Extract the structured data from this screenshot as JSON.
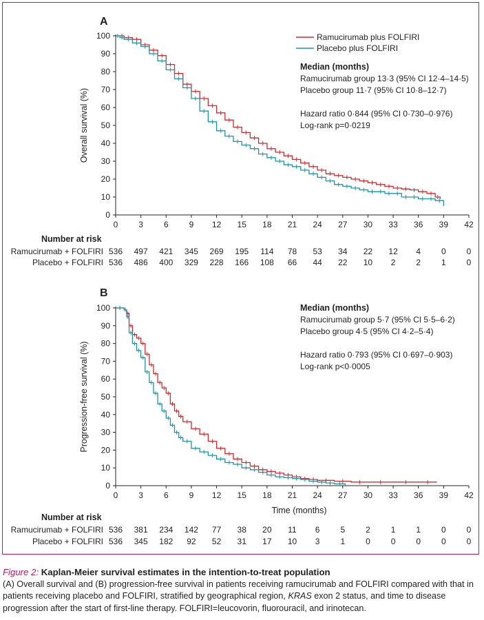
{
  "chart_data": [
    {
      "type": "line",
      "panel_label": "A",
      "ylabel": "Overall survival (%)",
      "xlabel": "",
      "x_ticks": [
        0,
        3,
        6,
        9,
        12,
        15,
        18,
        21,
        24,
        27,
        30,
        33,
        36,
        39,
        42
      ],
      "y_ticks": [
        0,
        10,
        20,
        30,
        40,
        50,
        60,
        70,
        80,
        90,
        100
      ],
      "xlim": [
        0,
        42
      ],
      "ylim": [
        0,
        100
      ],
      "legend": [
        "Ramucirumab plus FOLFIRI",
        "Placebo plus FOLFIRI"
      ],
      "legend_position": "top-right",
      "annotation_title": "Median (months)",
      "annotations": [
        "Ramucirumab group 13·3 (95% CI 12·4–14·5)",
        "Placebo group 11·7 (95% CI 10·8–12·7)",
        "",
        "Hazard ratio 0·844 (95% CI 0·730–0·976)",
        "Log-rank p=0·0219"
      ],
      "series": [
        {
          "name": "Ramucirumab plus FOLFIRI",
          "color": "#d7272b",
          "x": [
            0,
            0.5,
            1,
            2,
            3,
            4,
            5,
            6,
            7,
            8,
            9,
            10,
            11,
            12,
            13,
            14,
            15,
            16,
            17,
            18,
            19,
            20,
            21,
            22,
            23,
            24,
            25,
            26,
            27,
            28,
            29,
            30,
            31,
            32,
            33,
            34,
            35,
            36,
            37,
            38,
            38.6
          ],
          "y": [
            100,
            100,
            99,
            98,
            95,
            92,
            89,
            84,
            79,
            73,
            69,
            65,
            61,
            57,
            53,
            49,
            46,
            43,
            40,
            37,
            35,
            33,
            31,
            29,
            27,
            25,
            23,
            22,
            21,
            20,
            19,
            18,
            17,
            16,
            15,
            14.5,
            14,
            13,
            12,
            10,
            9
          ]
        },
        {
          "name": "Placebo plus FOLFIRI",
          "color": "#1795a8",
          "x": [
            0,
            0.5,
            1,
            2,
            3,
            4,
            5,
            6,
            7,
            8,
            9,
            10,
            11,
            12,
            13,
            14,
            15,
            16,
            17,
            18,
            19,
            20,
            21,
            22,
            23,
            24,
            25,
            26,
            27,
            28,
            29,
            30,
            31,
            32,
            33,
            34,
            35,
            36,
            37,
            38,
            39
          ],
          "y": [
            100,
            99,
            98,
            96,
            94,
            90,
            86,
            81,
            76,
            71,
            65,
            58,
            52,
            47,
            44,
            41,
            39,
            37,
            34,
            32,
            30,
            28,
            27,
            25,
            23,
            21,
            19,
            17,
            16,
            15,
            14,
            13,
            13,
            12,
            12,
            10,
            10,
            9,
            9,
            8,
            5
          ]
        }
      ],
      "risk_table": {
        "header": "Number at risk",
        "rows": [
          {
            "label": "Ramucirumab + FOLFIRI",
            "values": [
              536,
              497,
              421,
              345,
              269,
              195,
              114,
              78,
              53,
              34,
              22,
              12,
              4,
              0,
              0
            ]
          },
          {
            "label": "Placebo + FOLFIRI",
            "values": [
              536,
              486,
              400,
              329,
              228,
              166,
              108,
              66,
              44,
              22,
              10,
              2,
              2,
              1,
              0
            ]
          }
        ]
      }
    },
    {
      "type": "line",
      "panel_label": "B",
      "ylabel": "Progression-free survival (%)",
      "xlabel": "Time (months)",
      "x_ticks": [
        0,
        3,
        6,
        9,
        12,
        15,
        18,
        21,
        24,
        27,
        30,
        33,
        36,
        39,
        42
      ],
      "y_ticks": [
        0,
        10,
        20,
        30,
        40,
        50,
        60,
        70,
        80,
        90,
        100
      ],
      "xlim": [
        0,
        42
      ],
      "ylim": [
        0,
        100
      ],
      "annotation_title": "Median (months)",
      "annotations": [
        "Ramucirumab group 5·7 (95% CI 5·5–6·2)",
        "Placebo group 4·5 (95% CI 4·2–5·4)",
        "",
        "Hazard ratio 0·793 (95% CI 0·697–0·903)",
        "Log-rank p<0·0005"
      ],
      "series": [
        {
          "name": "Ramucirumab plus FOLFIRI",
          "color": "#d7272b",
          "x": [
            0,
            1,
            1.3,
            1.6,
            2,
            2.5,
            3,
            3.5,
            4,
            4.5,
            5,
            5.5,
            6,
            6.5,
            7,
            7.5,
            8,
            9,
            10,
            11,
            12,
            13,
            14,
            15,
            16,
            17,
            18,
            19,
            20,
            21,
            22,
            23,
            24,
            26,
            28,
            30,
            33,
            36,
            38.2
          ],
          "y": [
            100,
            99,
            97,
            90,
            85,
            83,
            80,
            74,
            68,
            63,
            58,
            55,
            52,
            46,
            42,
            39,
            36,
            32,
            29,
            25,
            21,
            18,
            15,
            13,
            11,
            9,
            8,
            7,
            6,
            5,
            4,
            3.5,
            3,
            2.5,
            2,
            2,
            2,
            2,
            2
          ]
        },
        {
          "name": "Placebo plus FOLFIRI",
          "color": "#1795a8",
          "x": [
            0,
            1,
            1.3,
            1.6,
            2,
            2.5,
            3,
            3.5,
            4,
            4.5,
            5,
            5.5,
            6,
            6.5,
            7,
            7.5,
            8,
            9,
            10,
            11,
            12,
            13,
            14,
            15,
            16,
            17,
            18,
            19,
            20,
            21,
            22,
            23,
            24,
            25,
            26,
            27.3
          ],
          "y": [
            100,
            99,
            95,
            86,
            80,
            76,
            72,
            64,
            58,
            52,
            46,
            42,
            38,
            34,
            30,
            27,
            25,
            21,
            19,
            17,
            15,
            13,
            12,
            10,
            9,
            7.5,
            6,
            5,
            4.5,
            4,
            3.5,
            2.5,
            2,
            1.5,
            1,
            0
          ]
        }
      ],
      "risk_table": {
        "header": "Number at risk",
        "rows": [
          {
            "label": "Ramucirumab + FOLFIRI",
            "values": [
              536,
              381,
              234,
              142,
              77,
              38,
              20,
              11,
              6,
              5,
              2,
              1,
              1,
              0,
              0
            ]
          },
          {
            "label": "Placebo + FOLFIRI",
            "values": [
              536,
              345,
              182,
              92,
              52,
              31,
              17,
              10,
              3,
              1,
              0,
              0,
              0,
              0,
              0
            ]
          }
        ]
      }
    }
  ],
  "caption": {
    "figure_label": "Figure 2:",
    "title": "Kaplan-Meier survival estimates in the intention-to-treat population",
    "body_part1": "(A) Overall survival and (B) progression-free survival in patients receiving ramucirumab and FOLFIRI compared with that in patients receiving placebo and FOLFIRI, stratified by geographical region, ",
    "body_italic": "KRAS",
    "body_part2": " exon 2 status, and time to disease progression after the start of first-line therapy. FOLFIRI=leucovorin, fluorouracil, and irinotecan."
  }
}
